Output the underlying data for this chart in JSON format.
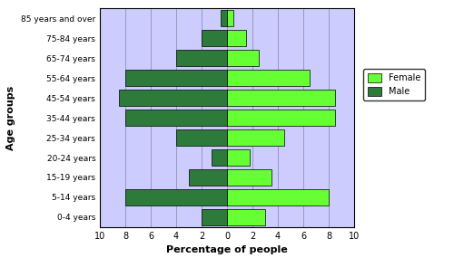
{
  "age_groups": [
    "0-4 years",
    "5-14 years",
    "15-19 years",
    "20-24 years",
    "25-34 years",
    "35-44 years",
    "45-54 years",
    "55-64 years",
    "65-74 years",
    "75-84 years",
    "85 years and over"
  ],
  "male": [
    2.0,
    8.0,
    3.0,
    1.2,
    4.0,
    8.0,
    8.5,
    8.0,
    4.0,
    2.0,
    0.5
  ],
  "female": [
    3.0,
    8.0,
    3.5,
    1.8,
    4.5,
    8.5,
    8.5,
    6.5,
    2.5,
    1.5,
    0.5
  ],
  "male_color": "#2d7a3a",
  "female_color": "#66ff33",
  "background_color": "#ccccff",
  "grid_color": "#9999bb",
  "xlabel": "Percentage of people",
  "ylabel": "Age groups",
  "xlim": [
    -10,
    10
  ],
  "xtick_labels": [
    "10",
    "8",
    "6",
    "4",
    "2",
    "0",
    "2",
    "4",
    "6",
    "8",
    "10"
  ],
  "bar_height": 0.8,
  "legend_labels": [
    "Female",
    "Male"
  ],
  "legend_colors": [
    "#66ff33",
    "#2d7a3a"
  ]
}
